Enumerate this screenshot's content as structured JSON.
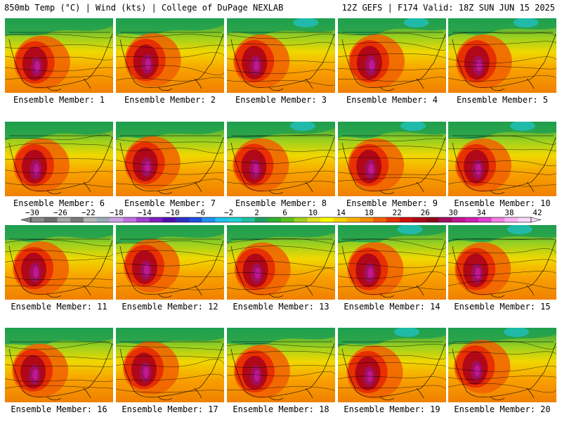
{
  "header": {
    "left": "850mb Temp (°C) | Wind (kts) | College of DuPage NEXLAB",
    "right": "12Z GEFS | F174 Valid: 18Z SUN JUN 15 2025"
  },
  "panels": [
    {
      "label": "Ensemble Member: 1"
    },
    {
      "label": "Ensemble Member: 2"
    },
    {
      "label": "Ensemble Member: 3"
    },
    {
      "label": "Ensemble Member: 4"
    },
    {
      "label": "Ensemble Member: 5"
    },
    {
      "label": "Ensemble Member: 6"
    },
    {
      "label": "Ensemble Member: 7"
    },
    {
      "label": "Ensemble Member: 8"
    },
    {
      "label": "Ensemble Member: 9"
    },
    {
      "label": "Ensemble Member: 10"
    },
    {
      "label": "Ensemble Member: 11"
    },
    {
      "label": "Ensemble Member: 12"
    },
    {
      "label": "Ensemble Member: 13"
    },
    {
      "label": "Ensemble Member: 14"
    },
    {
      "label": "Ensemble Member: 15"
    },
    {
      "label": "Ensemble Member: 16"
    },
    {
      "label": "Ensemble Member: 17"
    },
    {
      "label": "Ensemble Member: 18"
    },
    {
      "label": "Ensemble Member: 19"
    },
    {
      "label": "Ensemble Member: 20"
    }
  ],
  "colorbar": {
    "labels": [
      "−30",
      "−26",
      "−22",
      "−18",
      "−14",
      "−10",
      "−6",
      "−2",
      "2",
      "6",
      "10",
      "14",
      "18",
      "22",
      "26",
      "30",
      "34",
      "38",
      "42"
    ],
    "colors": [
      "#8c8c8c",
      "#6e6e6e",
      "#a6a6a6",
      "#7a7a7a",
      "#b4b4b4",
      "#9aaab9",
      "#cda0e6",
      "#c070e0",
      "#a040d0",
      "#8020c0",
      "#5010b0",
      "#3030c0",
      "#2050e0",
      "#2090f0",
      "#20c0f0",
      "#20d0d0",
      "#20c0a0",
      "#20a060",
      "#30b030",
      "#60c020",
      "#a0d020",
      "#e0e020",
      "#f8f800",
      "#f8d000",
      "#f8b000",
      "#f89000",
      "#f06000",
      "#e83000",
      "#d01010",
      "#b00818",
      "#900818",
      "#a01060",
      "#c01890",
      "#d020b0",
      "#e040d0",
      "#f080e0",
      "#f8b0f0",
      "#f8d8f8"
    ]
  }
}
